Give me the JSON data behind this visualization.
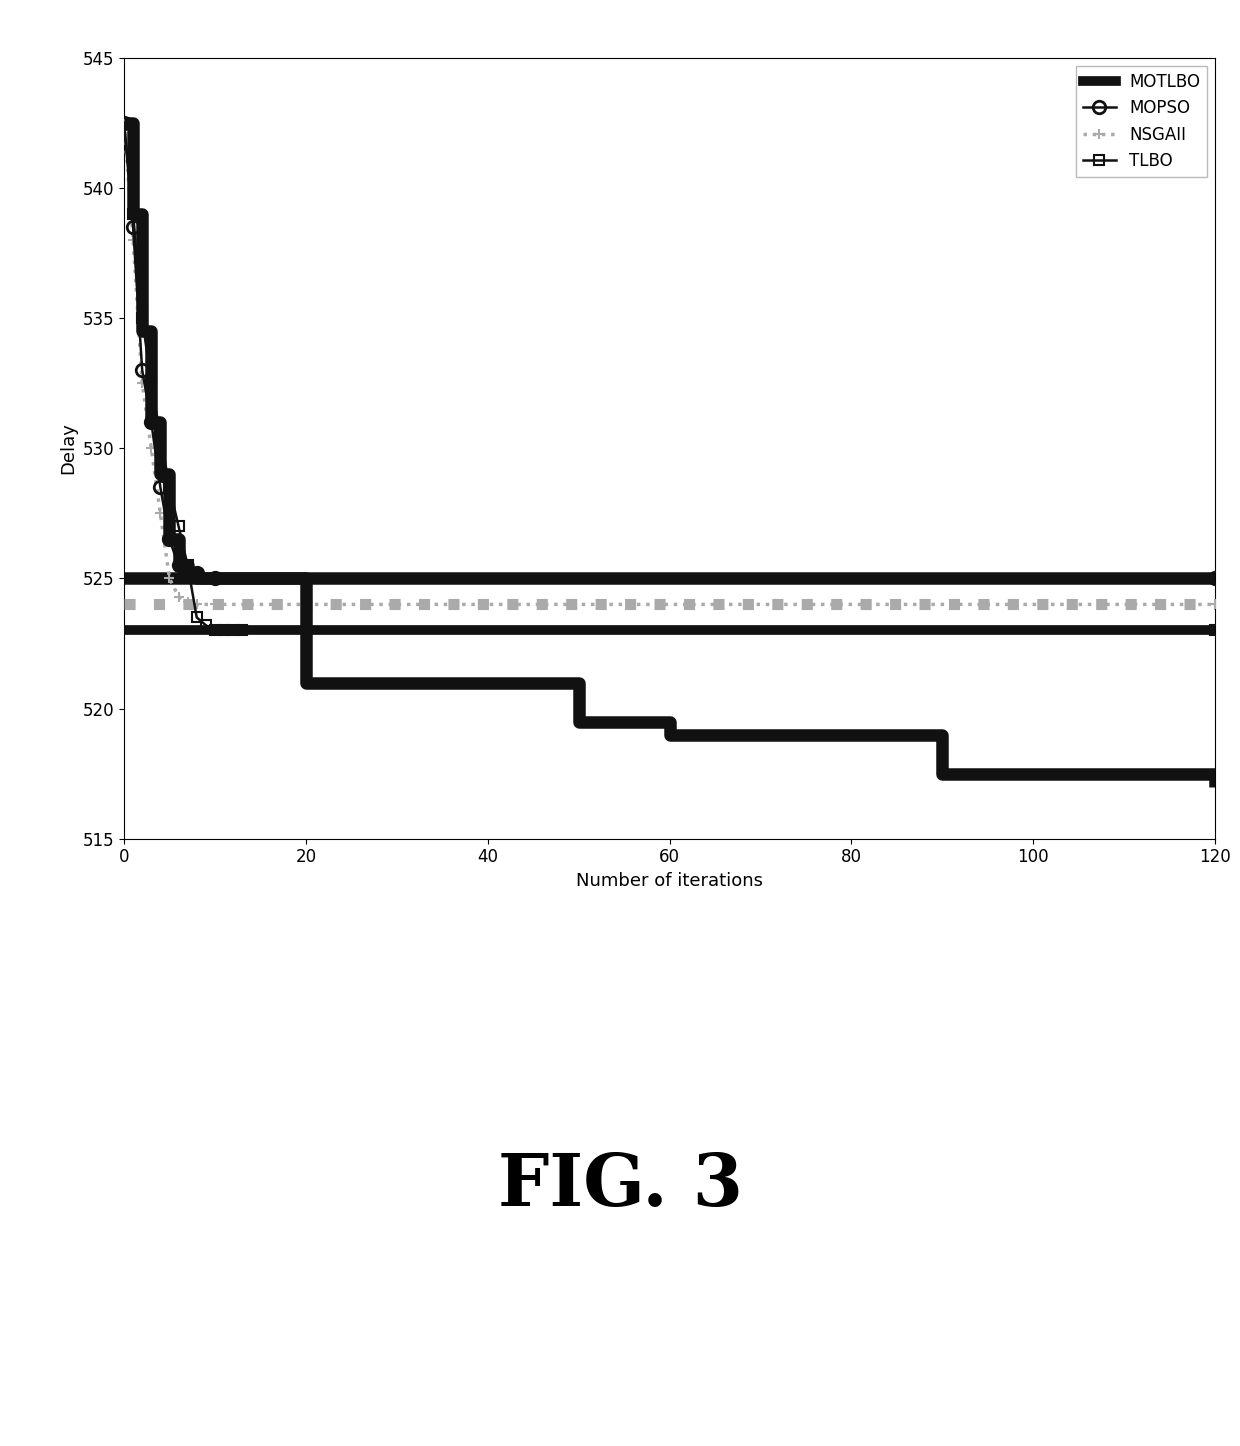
{
  "title": "FIG. 3",
  "xlabel": "Number of iterations",
  "ylabel": "Delay",
  "xlim": [
    0,
    120
  ],
  "ylim": [
    515,
    545
  ],
  "yticks": [
    515,
    520,
    525,
    530,
    535,
    540,
    545
  ],
  "xticks": [
    0,
    20,
    40,
    60,
    80,
    100,
    120
  ],
  "motlbo_stair": {
    "label": "MOTLBO",
    "color": "#111111",
    "linewidth": 9,
    "x": [
      0,
      1,
      2,
      3,
      4,
      5,
      6,
      7,
      8,
      9,
      10,
      12,
      15,
      20,
      30,
      40,
      50,
      55,
      60,
      65,
      90,
      95,
      120
    ],
    "y": [
      542.5,
      539.0,
      534.5,
      531.0,
      529.0,
      526.5,
      525.5,
      525.2,
      525.0,
      525.0,
      525.0,
      525.0,
      525.0,
      521.0,
      521.0,
      521.0,
      519.5,
      519.5,
      519.0,
      519.0,
      517.5,
      517.5,
      517.0
    ]
  },
  "mopso": {
    "label": "MOPSO",
    "color": "#111111",
    "linewidth": 1.8,
    "marker": "o",
    "markersize": 9,
    "x": [
      0,
      1,
      2,
      3,
      4,
      5,
      6,
      7,
      8,
      10,
      120
    ],
    "y": [
      542.5,
      538.5,
      533.0,
      531.0,
      528.5,
      526.5,
      525.5,
      525.3,
      525.2,
      525.0,
      525.0
    ]
  },
  "nsgaii": {
    "label": "NSGAII",
    "color": "#aaaaaa",
    "linewidth": 2.5,
    "linestyle": "dotted",
    "marker": "+",
    "markersize": 7,
    "markeredgewidth": 1.5,
    "x": [
      0,
      1,
      2,
      3,
      4,
      5,
      6,
      7,
      8,
      10,
      120
    ],
    "y": [
      542.5,
      538.0,
      532.5,
      530.0,
      527.5,
      525.0,
      524.3,
      524.1,
      524.0,
      524.0,
      524.0
    ]
  },
  "tlbo": {
    "label": "TLBO",
    "color": "#111111",
    "linewidth": 1.8,
    "linestyle": "solid",
    "marker": "s",
    "markersize": 7,
    "markeredgewidth": 1.5,
    "x": [
      0,
      1,
      2,
      3,
      4,
      5,
      6,
      7,
      8,
      9,
      10,
      11,
      12,
      13,
      120
    ],
    "y": [
      542.5,
      539.0,
      535.0,
      532.5,
      530.5,
      528.5,
      527.0,
      525.5,
      523.5,
      523.2,
      523.0,
      523.0,
      523.0,
      523.0,
      523.0
    ]
  },
  "motlbo_band": {
    "color": "#111111",
    "linewidth": 9,
    "y": 525.0
  },
  "nsgaii_band": {
    "color": "#aaaaaa",
    "linewidth": 8,
    "linestyle": "dotted",
    "y": 524.0
  },
  "tlbo_band": {
    "color": "#111111",
    "linewidth": 7,
    "y": 523.0
  },
  "fig_caption": "FIG. 3",
  "fig_caption_fontsize": 52,
  "background_color": "#ffffff"
}
